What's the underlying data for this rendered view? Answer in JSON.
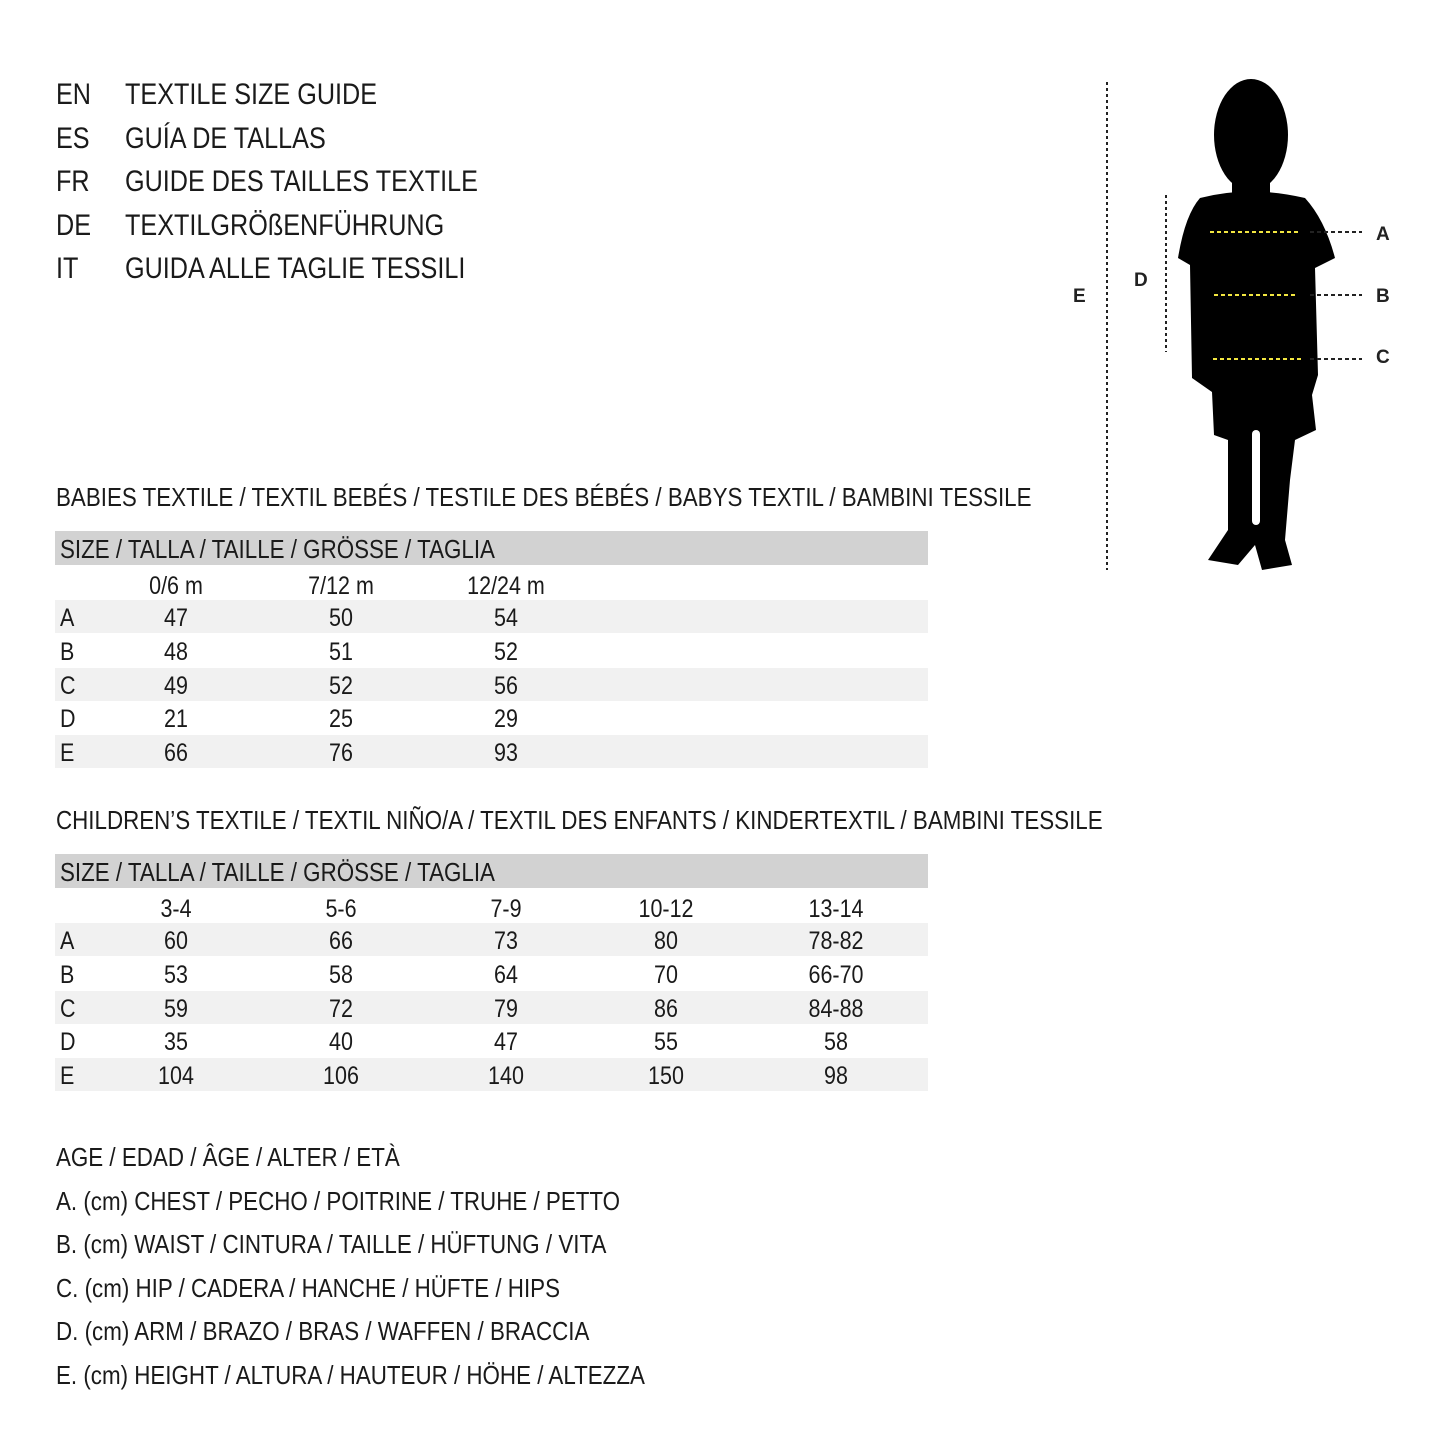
{
  "titles": [
    {
      "lang": "EN",
      "text": "TEXTILE SIZE GUIDE"
    },
    {
      "lang": "ES",
      "text": "GUÍA DE TALLAS"
    },
    {
      "lang": "FR",
      "text": "GUIDE DES TAILLES TEXTILE"
    },
    {
      "lang": "DE",
      "text": "TEXTILGRÖßENFÜHRUNG"
    },
    {
      "lang": "IT",
      "text": "GUIDA ALLE TAGLIE TESSILI"
    }
  ],
  "figure": {
    "labels": {
      "a": "A",
      "b": "B",
      "c": "C",
      "d": "D",
      "e": "E"
    },
    "accent_color": "#f2e640",
    "icon": "child-silhouette"
  },
  "babies": {
    "heading": "BABIES TEXTILE / TEXTIL BEBÉS / TESTILE DES BÉBÉS / BABYS TEXTIL / BAMBINI TESSILE",
    "size_label": "SIZE / TALLA / TAILLE / GRÖSSE / TAGLIA",
    "columns": [
      "0/6 m",
      "7/12 m",
      "12/24 m"
    ],
    "rows": [
      {
        "label": "A",
        "values": [
          "47",
          "50",
          "54"
        ]
      },
      {
        "label": "B",
        "values": [
          "48",
          "51",
          "52"
        ]
      },
      {
        "label": "C",
        "values": [
          "49",
          "52",
          "56"
        ]
      },
      {
        "label": "D",
        "values": [
          "21",
          "25",
          "29"
        ]
      },
      {
        "label": "E",
        "values": [
          "66",
          "76",
          "93"
        ]
      }
    ]
  },
  "children": {
    "heading": "CHILDREN’S TEXTILE / TEXTIL NIÑO/A / TEXTIL DES ENFANTS / KINDERTEXTIL / BAMBINI TESSILE",
    "size_label": "SIZE / TALLA / TAILLE / GRÖSSE / TAGLIA",
    "columns": [
      "3-4",
      "5-6",
      "7-9",
      "10-12",
      "13-14"
    ],
    "rows": [
      {
        "label": "A",
        "values": [
          "60",
          "66",
          "73",
          "80",
          "78-82"
        ]
      },
      {
        "label": "B",
        "values": [
          "53",
          "58",
          "64",
          "70",
          "66-70"
        ]
      },
      {
        "label": "C",
        "values": [
          "59",
          "72",
          "79",
          "86",
          "84-88"
        ]
      },
      {
        "label": "D",
        "values": [
          "35",
          "40",
          "47",
          "55",
          "58"
        ]
      },
      {
        "label": "E",
        "values": [
          "104",
          "106",
          "140",
          "150",
          "98"
        ]
      }
    ]
  },
  "legend": [
    "AGE / EDAD / ÂGE / ALTER / ETÀ",
    "A. (cm) CHEST / PECHO / POITRINE / TRUHE / PETTO",
    "B. (cm) WAIST / CINTURA / TAILLE / HÜFTUNG / VITA",
    "C. (cm) HIP / CADERA / HANCHE / HÜFTE / HIPS",
    "D. (cm) ARM / BRAZO / BRAS / WAFFEN / BRACCIA",
    "E. (cm) HEIGHT / ALTURA / HAUTEUR / HÖHE / ALTEZZA"
  ]
}
